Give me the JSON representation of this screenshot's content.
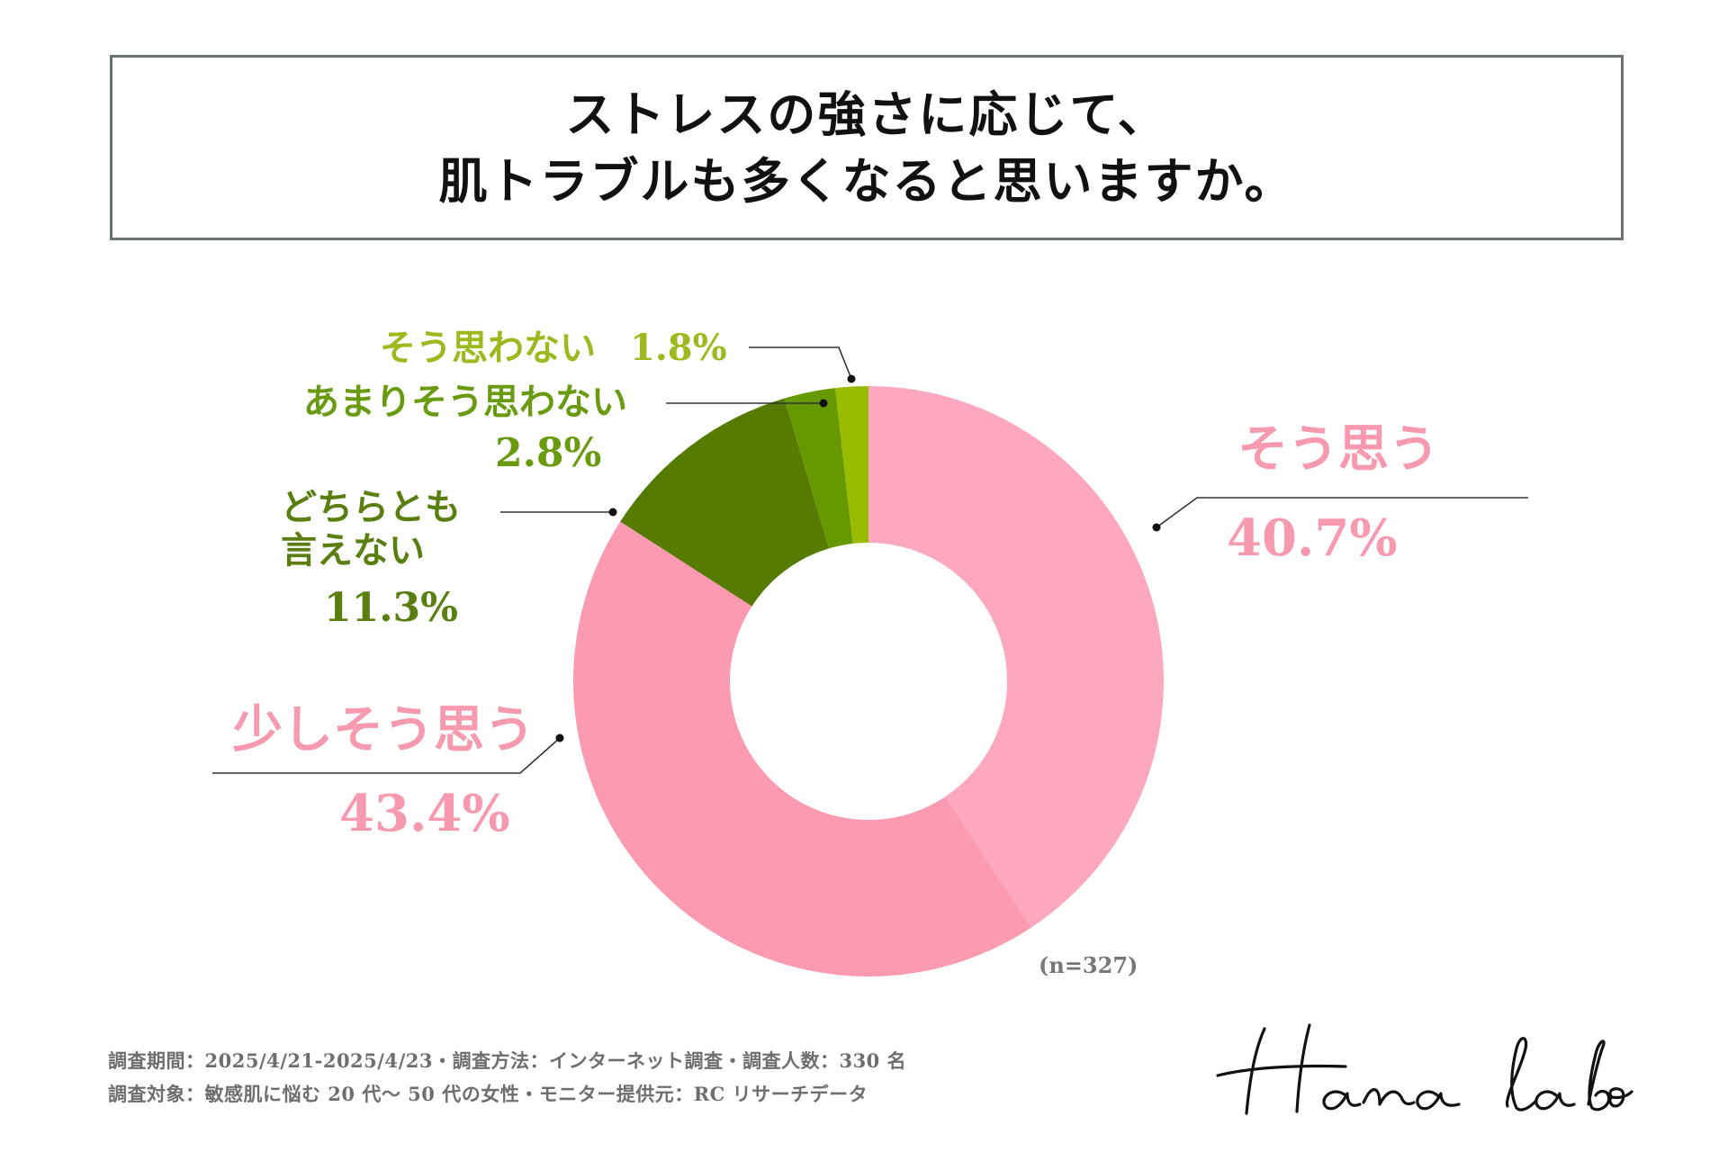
{
  "title": {
    "line1": "ストレスの強さに応じて、",
    "line2": "肌トラブルも多くなると思いますか。"
  },
  "colors": {
    "accent_pink": "#f79ab0",
    "dark_green": "#557b00",
    "mid_green": "#669900",
    "light_green": "#99bb00"
  },
  "chart_data": {
    "type": "pie",
    "variant": "donut",
    "title": "ストレスの強さに応じて、肌トラブルも多くなると思いますか。",
    "sample_size": "(n=327)",
    "unit": "%",
    "slices": [
      {
        "label": "そう思う",
        "value": 40.7,
        "value_text": "40.7%",
        "color": "#fda7c1",
        "label_color": "#f79ab0"
      },
      {
        "label": "少しそう思う",
        "value": 43.4,
        "value_text": "43.4%",
        "color": "#fb9ab0",
        "label_color": "#f79ab0"
      },
      {
        "label": "どちらとも言えない",
        "value": 11.3,
        "value_text": "11.3%",
        "color": "#557b00",
        "label_color": "#5a7f10"
      },
      {
        "label": "あまりそう思わない",
        "value": 2.8,
        "value_text": "2.8%",
        "color": "#669900",
        "label_color": "#6a9a10"
      },
      {
        "label": "そう思わない",
        "value": 1.8,
        "value_text": "1.8%",
        "color": "#99bb00",
        "label_color": "#9cba1e"
      }
    ]
  },
  "footer": {
    "line1": "調査期間：2025/4/21-2025/4/23・調査方法：インターネット調査・調査人数：330 名",
    "line2": "調査対象：敏感肌に悩む 20 代〜 50 代の女性・モニター提供元：RC リサーチデータ"
  },
  "logo": {
    "text": "Hana labo"
  }
}
